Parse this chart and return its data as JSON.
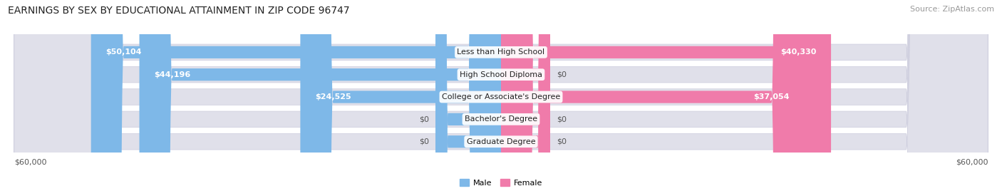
{
  "title": "EARNINGS BY SEX BY EDUCATIONAL ATTAINMENT IN ZIP CODE 96747",
  "source": "Source: ZipAtlas.com",
  "categories": [
    "Less than High School",
    "High School Diploma",
    "College or Associate's Degree",
    "Bachelor's Degree",
    "Graduate Degree"
  ],
  "male_values": [
    50104,
    44196,
    24525,
    0,
    0
  ],
  "female_values": [
    40330,
    0,
    37054,
    0,
    0
  ],
  "male_color": "#7eb8e8",
  "female_color": "#f07baa",
  "bar_bg_color": "#e0e0ea",
  "max_value": 60000,
  "left_label": "$60,000",
  "right_label": "$60,000",
  "male_label": "Male",
  "female_label": "Female",
  "title_fontsize": 10,
  "source_fontsize": 8,
  "cat_fontsize": 8,
  "val_fontsize": 8,
  "axis_fontsize": 8,
  "background_color": "#ffffff",
  "row_bg_color": "#f2f2f7",
  "small_bar_male": 8000,
  "small_bar_female": 6000
}
